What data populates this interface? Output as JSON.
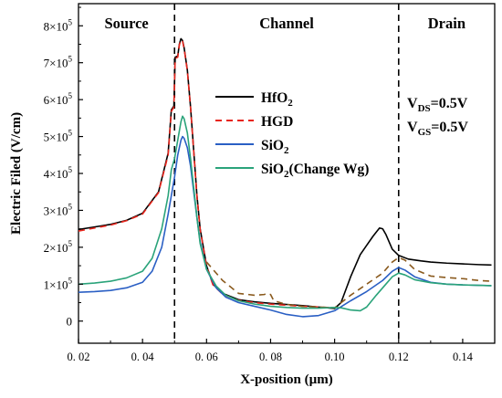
{
  "chart_data": {
    "type": "line",
    "title": "",
    "xlabel": "X-position (µm)",
    "ylabel": "Electric Filed (V/cm)",
    "xlim": [
      0.02,
      0.15
    ],
    "ylim": [
      -60000,
      860000
    ],
    "x_ticks": [
      {
        "value": 0.02,
        "label": "0. 02"
      },
      {
        "value": 0.04,
        "label": "0. 04"
      },
      {
        "value": 0.06,
        "label": "0. 06"
      },
      {
        "value": 0.08,
        "label": "0. 08"
      },
      {
        "value": 0.1,
        "label": "0.10"
      },
      {
        "value": 0.12,
        "label": "0.12"
      },
      {
        "value": 0.14,
        "label": "0.14"
      }
    ],
    "y_ticks": [
      {
        "value": 0,
        "mant": "0",
        "exp": ""
      },
      {
        "value": 100000,
        "mant": "1×10",
        "exp": "5"
      },
      {
        "value": 200000,
        "mant": "2×10",
        "exp": "5"
      },
      {
        "value": 300000,
        "mant": "3×10",
        "exp": "5"
      },
      {
        "value": 400000,
        "mant": "4×10",
        "exp": "5"
      },
      {
        "value": 500000,
        "mant": "5×10",
        "exp": "5"
      },
      {
        "value": 600000,
        "mant": "6×10",
        "exp": "5"
      },
      {
        "value": 700000,
        "mant": "7×10",
        "exp": "5"
      },
      {
        "value": 800000,
        "mant": "8×10",
        "exp": "5"
      }
    ],
    "regions": [
      {
        "label": "Source",
        "x_center": 0.035
      },
      {
        "label": "Channel",
        "x_center": 0.085
      },
      {
        "label": "Drain",
        "x_center": 0.135
      }
    ],
    "boundaries": [
      0.05,
      0.12
    ],
    "annotations": [
      {
        "base": "V",
        "sub": "DS",
        "rest": "=0.5V"
      },
      {
        "base": "V",
        "sub": "GS",
        "rest": "=0.5V"
      }
    ],
    "legend_position": "center-right",
    "series": [
      {
        "name": "HfO2",
        "legend_parts": [
          {
            "t": "HfO",
            "s": ""
          },
          {
            "t": "2",
            "s": "sub"
          }
        ],
        "color": "#000000",
        "dash": "",
        "points": [
          [
            0.02,
            248000
          ],
          [
            0.025,
            255000
          ],
          [
            0.03,
            262000
          ],
          [
            0.035,
            273000
          ],
          [
            0.04,
            292000
          ],
          [
            0.045,
            350000
          ],
          [
            0.048,
            455000
          ],
          [
            0.049,
            572000
          ],
          [
            0.0498,
            583000
          ],
          [
            0.0502,
            715000
          ],
          [
            0.051,
            718000
          ],
          [
            0.0515,
            750000
          ],
          [
            0.052,
            765000
          ],
          [
            0.0525,
            760000
          ],
          [
            0.053,
            740000
          ],
          [
            0.054,
            680000
          ],
          [
            0.055,
            580000
          ],
          [
            0.056,
            460000
          ],
          [
            0.057,
            340000
          ],
          [
            0.058,
            250000
          ],
          [
            0.06,
            150000
          ],
          [
            0.062,
            100000
          ],
          [
            0.065,
            75000
          ],
          [
            0.07,
            58000
          ],
          [
            0.075,
            52000
          ],
          [
            0.08,
            48000
          ],
          [
            0.09,
            42000
          ],
          [
            0.095,
            38000
          ],
          [
            0.1,
            34000
          ],
          [
            0.102,
            50000
          ],
          [
            0.105,
            120000
          ],
          [
            0.108,
            180000
          ],
          [
            0.11,
            205000
          ],
          [
            0.112,
            230000
          ],
          [
            0.114,
            252000
          ],
          [
            0.115,
            250000
          ],
          [
            0.116,
            235000
          ],
          [
            0.118,
            195000
          ],
          [
            0.12,
            178000
          ],
          [
            0.123,
            168000
          ],
          [
            0.127,
            163000
          ],
          [
            0.13,
            160000
          ],
          [
            0.135,
            157000
          ],
          [
            0.14,
            155000
          ],
          [
            0.145,
            153000
          ],
          [
            0.149,
            152000
          ]
        ]
      },
      {
        "name": "HGD",
        "legend_parts": [
          {
            "t": "HGD",
            "s": ""
          }
        ],
        "color": "#e8251c",
        "dash": "7,5",
        "points": [
          [
            0.02,
            244000
          ],
          [
            0.025,
            252000
          ],
          [
            0.03,
            260000
          ],
          [
            0.035,
            272000
          ],
          [
            0.04,
            290000
          ],
          [
            0.045,
            348000
          ],
          [
            0.048,
            450000
          ],
          [
            0.049,
            568000
          ],
          [
            0.0498,
            580000
          ],
          [
            0.0502,
            712000
          ],
          [
            0.051,
            715000
          ],
          [
            0.0515,
            748000
          ],
          [
            0.052,
            762000
          ],
          [
            0.0525,
            758000
          ],
          [
            0.053,
            738000
          ],
          [
            0.054,
            678000
          ],
          [
            0.055,
            578000
          ],
          [
            0.056,
            458000
          ],
          [
            0.057,
            338000
          ],
          [
            0.058,
            248000
          ],
          [
            0.06,
            148000
          ],
          [
            0.062,
            98000
          ],
          [
            0.065,
            73000
          ],
          [
            0.07,
            56000
          ],
          [
            0.075,
            50000
          ],
          [
            0.08,
            46000
          ],
          [
            0.09,
            40000
          ],
          [
            0.1,
            36000
          ]
        ]
      },
      {
        "name": "HGD-drain",
        "legend_parts": [],
        "color": "#8a5a1e",
        "dash": "7,5",
        "points": [
          [
            0.06,
            160000
          ],
          [
            0.065,
            110000
          ],
          [
            0.07,
            75000
          ],
          [
            0.075,
            70000
          ],
          [
            0.078,
            72000
          ],
          [
            0.079,
            75000
          ],
          [
            0.08,
            72000
          ],
          [
            0.081,
            55000
          ],
          [
            0.085,
            45000
          ],
          [
            0.09,
            40000
          ],
          [
            0.095,
            38000
          ],
          [
            0.1,
            36000
          ],
          [
            0.105,
            70000
          ],
          [
            0.11,
            100000
          ],
          [
            0.115,
            130000
          ],
          [
            0.118,
            160000
          ],
          [
            0.12,
            172000
          ],
          [
            0.122,
            165000
          ],
          [
            0.125,
            140000
          ],
          [
            0.13,
            122000
          ],
          [
            0.135,
            118000
          ],
          [
            0.14,
            115000
          ],
          [
            0.145,
            110000
          ],
          [
            0.149,
            108000
          ]
        ]
      },
      {
        "name": "SiO2",
        "legend_parts": [
          {
            "t": "SiO",
            "s": ""
          },
          {
            "t": "2",
            "s": "sub"
          }
        ],
        "color": "#2a5fc4",
        "dash": "",
        "points": [
          [
            0.02,
            78000
          ],
          [
            0.025,
            80000
          ],
          [
            0.03,
            83000
          ],
          [
            0.035,
            90000
          ],
          [
            0.04,
            105000
          ],
          [
            0.043,
            135000
          ],
          [
            0.046,
            200000
          ],
          [
            0.048,
            290000
          ],
          [
            0.05,
            390000
          ],
          [
            0.051,
            450000
          ],
          [
            0.052,
            490000
          ],
          [
            0.0525,
            500000
          ],
          [
            0.053,
            495000
          ],
          [
            0.054,
            470000
          ],
          [
            0.055,
            420000
          ],
          [
            0.056,
            350000
          ],
          [
            0.057,
            280000
          ],
          [
            0.058,
            215000
          ],
          [
            0.06,
            140000
          ],
          [
            0.063,
            90000
          ],
          [
            0.066,
            65000
          ],
          [
            0.07,
            50000
          ],
          [
            0.075,
            40000
          ],
          [
            0.08,
            30000
          ],
          [
            0.085,
            18000
          ],
          [
            0.09,
            12000
          ],
          [
            0.095,
            15000
          ],
          [
            0.1,
            28000
          ],
          [
            0.105,
            55000
          ],
          [
            0.11,
            80000
          ],
          [
            0.115,
            110000
          ],
          [
            0.118,
            135000
          ],
          [
            0.12,
            145000
          ],
          [
            0.122,
            138000
          ],
          [
            0.125,
            120000
          ],
          [
            0.13,
            105000
          ],
          [
            0.135,
            100000
          ],
          [
            0.14,
            98000
          ],
          [
            0.145,
            97000
          ],
          [
            0.149,
            96000
          ]
        ]
      },
      {
        "name": "SiO2(Change Wg)",
        "legend_parts": [
          {
            "t": "SiO",
            "s": ""
          },
          {
            "t": "2",
            "s": "sub"
          },
          {
            "t": "(Change Wg)",
            "s": ""
          }
        ],
        "color": "#2aa37a",
        "dash": "",
        "points": [
          [
            0.02,
            100000
          ],
          [
            0.025,
            103000
          ],
          [
            0.03,
            108000
          ],
          [
            0.035,
            117000
          ],
          [
            0.04,
            135000
          ],
          [
            0.043,
            170000
          ],
          [
            0.046,
            250000
          ],
          [
            0.048,
            340000
          ],
          [
            0.049,
            410000
          ],
          [
            0.05,
            440000
          ],
          [
            0.051,
            490000
          ],
          [
            0.052,
            540000
          ],
          [
            0.0525,
            555000
          ],
          [
            0.053,
            548000
          ],
          [
            0.054,
            510000
          ],
          [
            0.055,
            440000
          ],
          [
            0.056,
            360000
          ],
          [
            0.057,
            280000
          ],
          [
            0.058,
            210000
          ],
          [
            0.06,
            140000
          ],
          [
            0.063,
            95000
          ],
          [
            0.066,
            70000
          ],
          [
            0.07,
            55000
          ],
          [
            0.075,
            46000
          ],
          [
            0.08,
            40000
          ],
          [
            0.085,
            37000
          ],
          [
            0.09,
            35000
          ],
          [
            0.095,
            35000
          ],
          [
            0.1,
            37000
          ],
          [
            0.102,
            36000
          ],
          [
            0.105,
            30000
          ],
          [
            0.108,
            28000
          ],
          [
            0.11,
            38000
          ],
          [
            0.113,
            70000
          ],
          [
            0.116,
            100000
          ],
          [
            0.118,
            120000
          ],
          [
            0.12,
            130000
          ],
          [
            0.122,
            125000
          ],
          [
            0.125,
            112000
          ],
          [
            0.13,
            104000
          ],
          [
            0.135,
            100000
          ],
          [
            0.14,
            98000
          ],
          [
            0.145,
            97000
          ],
          [
            0.149,
            96000
          ]
        ]
      }
    ]
  }
}
